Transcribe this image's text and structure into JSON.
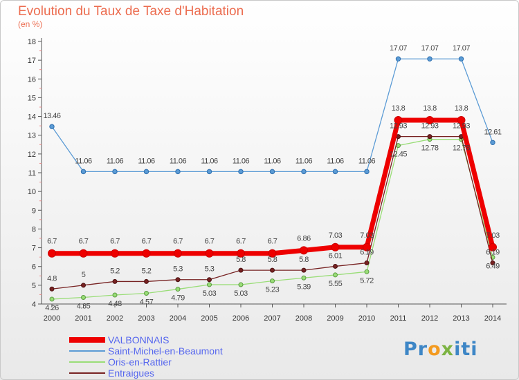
{
  "header": {
    "title": "Evolution du Taux de Taxe d'Habitation",
    "subtitle": "(en %)"
  },
  "logo": {
    "parts": [
      "Pr",
      "o",
      "x",
      "i",
      "ti"
    ],
    "colors": [
      "#3d86c6",
      "#f39a1f",
      "#7cb342",
      "#3d86c6",
      "#3d86c6"
    ]
  },
  "chart_data": {
    "type": "line",
    "x": [
      "2000",
      "2001",
      "2002",
      "2003",
      "2004",
      "2005",
      "2006",
      "2007",
      "2008",
      "2009",
      "2010",
      "2011",
      "2012",
      "2013",
      "2014"
    ],
    "ylim": [
      4,
      18
    ],
    "yticks": [
      4,
      5,
      6,
      7,
      8,
      9,
      10,
      11,
      12,
      13,
      14,
      15,
      16,
      17,
      18
    ],
    "grid": false,
    "legend": "bottom-left",
    "series": [
      {
        "name": "Saint-Michel-en-Beaumont",
        "color": "#5b9bd5",
        "values": [
          13.46,
          11.06,
          11.06,
          11.06,
          11.06,
          11.06,
          11.06,
          11.06,
          11.06,
          11.06,
          11.06,
          17.07,
          17.07,
          17.07,
          12.61
        ],
        "labels": [
          "13.46",
          "11.06",
          "11.06",
          "11.06",
          "11.06",
          "11.06",
          "11.06",
          "11.06",
          "11.06",
          "11.06",
          "11.06",
          "17.07",
          "17.07",
          "17.07",
          "12.61"
        ]
      },
      {
        "name": "Oris-en-Rattier",
        "color": "#99dd77",
        "values": [
          4.26,
          4.35,
          4.48,
          4.57,
          4.79,
          5.03,
          5.03,
          5.23,
          5.39,
          5.55,
          5.72,
          12.45,
          12.78,
          12.78,
          6.49
        ],
        "labels": [
          "4.26",
          "4.35",
          "4.48",
          "4.57",
          "4.79",
          "5.03",
          "5.03",
          "5.23",
          "5.39",
          "5.55",
          "5.72",
          "12.45",
          "12.78",
          "12.78",
          "6.49"
        ]
      },
      {
        "name": "Entraigues",
        "color": "#772222",
        "values": [
          4.8,
          5,
          5.2,
          5.2,
          5.3,
          5.3,
          5.8,
          5.8,
          5.8,
          6.01,
          6.19,
          12.93,
          12.93,
          12.93,
          6.19
        ],
        "labels": [
          "4.8",
          "5",
          "5.2",
          "5.2",
          "5.3",
          "5.3",
          "5.8",
          "5.8",
          "5.8",
          "6.01",
          "6.19",
          "12.93",
          "12.93",
          "12.93",
          "6.19"
        ]
      },
      {
        "name": "VALBONNAIS",
        "color": "#ee0000",
        "values": [
          6.7,
          6.7,
          6.7,
          6.7,
          6.7,
          6.7,
          6.7,
          6.7,
          6.86,
          7.03,
          7.03,
          13.8,
          13.8,
          13.8,
          7.03
        ],
        "labels": [
          "6.7",
          "6.7",
          "6.7",
          "6.7",
          "6.7",
          "6.7",
          "6.7",
          "6.7",
          "6.86",
          "7.03",
          "7.03",
          "13.8",
          "13.8",
          "13.8",
          "7.03"
        ]
      }
    ],
    "legend_order": [
      "VALBONNAIS",
      "Saint-Michel-en-Beaumont",
      "Oris-en-Rattier",
      "Entraigues"
    ]
  }
}
